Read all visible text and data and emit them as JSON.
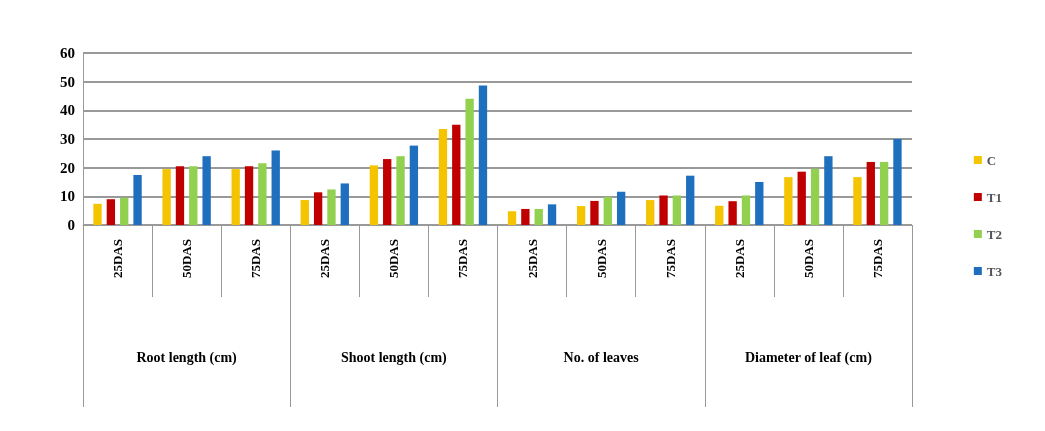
{
  "chart_data": {
    "type": "bar",
    "categories": [
      "25DAS",
      "50DAS",
      "75DAS",
      "25DAS",
      "50DAS",
      "75DAS",
      "25DAS",
      "50DAS",
      "75DAS",
      "25DAS",
      "50DAS",
      "75DAS"
    ],
    "annotations": [
      "Root length (cm)",
      "Shoot length (cm)",
      "No. of leaves",
      "Diameter of leaf (cm)"
    ],
    "series": [
      {
        "name": "C",
        "color": "#f5c400",
        "values": [
          7.4,
          19.5,
          19.5,
          8.7,
          20.8,
          33.5,
          4.8,
          6.6,
          8.7,
          6.7,
          16.7,
          16.7
        ]
      },
      {
        "name": "T1",
        "color": "#c00000",
        "values": [
          9,
          20.5,
          20.5,
          11.4,
          23,
          35,
          5.6,
          8.4,
          10.3,
          8.3,
          18.6,
          22
        ]
      },
      {
        "name": "T2",
        "color": "#92d050",
        "values": [
          9.5,
          20.5,
          21.5,
          12.4,
          24,
          44,
          5.6,
          9.8,
          10.3,
          10.3,
          19.6,
          22
        ]
      },
      {
        "name": "T3",
        "color": "#1f6fbf",
        "values": [
          17.4,
          24,
          26,
          14.5,
          27.7,
          48.7,
          7.2,
          11.6,
          17.2,
          15,
          24,
          30
        ]
      }
    ],
    "ylim": [
      0,
      60
    ],
    "yticks": [
      0,
      10,
      20,
      30,
      40,
      50,
      60
    ],
    "grid": "y",
    "legend": "right"
  }
}
